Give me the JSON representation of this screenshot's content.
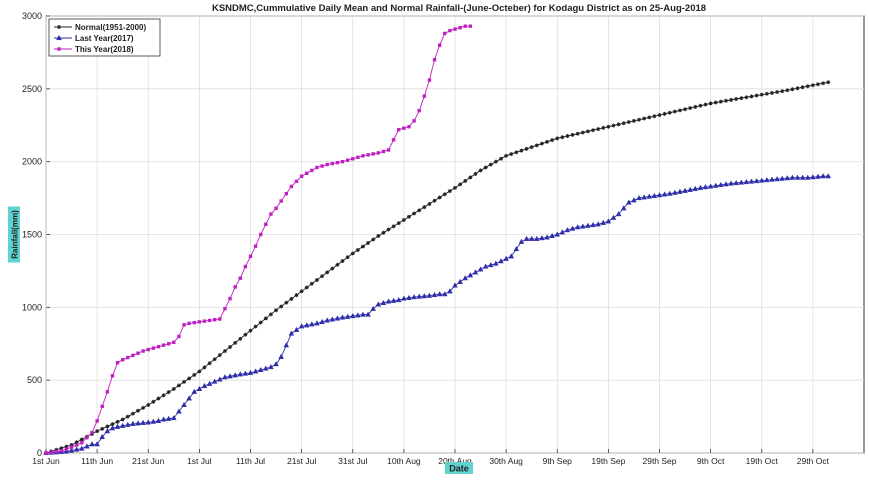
{
  "chart_data": {
    "type": "line",
    "title": "KSNDMC,Cummulative Daily Mean and Normal Rainfall-(June-Octeber) for Kodagu District as on 25-Aug-2018",
    "xlabel": "Date",
    "ylabel": "Rainfall(mm)",
    "x_unit": "day index from 1st Jun (0 = 1st Jun)",
    "xlim": [
      0,
      160
    ],
    "ylim": [
      0,
      3000
    ],
    "yticks": [
      0,
      500,
      1000,
      1500,
      2000,
      2500,
      3000
    ],
    "xtick_positions": [
      0,
      10,
      20,
      30,
      40,
      50,
      60,
      70,
      80,
      90,
      100,
      110,
      120,
      130,
      140,
      150
    ],
    "xtick_labels": [
      "1st Jun",
      "11th Jun",
      "21st Jun",
      "1st Jul",
      "11th Jul",
      "21st Jul",
      "31st Jul",
      "10th Aug",
      "20th Aug",
      "30th Aug",
      "9th Sep",
      "19th Sep",
      "29th Sep",
      "9th Oct",
      "19th Oct",
      "29th Oct"
    ],
    "grid": true,
    "legend_position": "top-left",
    "series": [
      {
        "name": "Normal(1951-2000)",
        "color": "#222222",
        "marker": "star",
        "x": [
          0,
          5,
          10,
          15,
          20,
          25,
          30,
          35,
          40,
          45,
          50,
          55,
          60,
          65,
          70,
          75,
          80,
          85,
          90,
          95,
          100,
          105,
          110,
          115,
          120,
          125,
          130,
          135,
          140,
          145,
          150,
          153
        ],
        "values": [
          0,
          55,
          150,
          230,
          330,
          440,
          560,
          700,
          840,
          980,
          1110,
          1240,
          1370,
          1490,
          1600,
          1710,
          1820,
          1940,
          2040,
          2100,
          2160,
          2200,
          2240,
          2280,
          2320,
          2360,
          2400,
          2430,
          2460,
          2490,
          2525,
          2545
        ]
      },
      {
        "name": "Last Year(2017)",
        "color": "#2e2eaa",
        "marker": "triangle",
        "x": [
          0,
          4,
          7,
          9,
          10,
          11,
          12,
          13,
          14,
          17,
          20,
          22,
          23,
          25,
          27,
          29,
          31,
          33,
          35,
          38,
          40,
          42,
          44,
          45,
          46,
          47,
          48,
          50,
          53,
          55,
          58,
          60,
          62,
          63,
          64,
          65,
          67,
          69,
          70,
          72,
          75,
          77,
          78,
          79,
          80,
          82,
          84,
          85,
          86,
          87,
          88,
          91,
          93,
          94,
          96,
          98,
          100,
          102,
          104,
          106,
          108,
          109,
          110,
          112,
          114,
          116,
          118,
          120,
          122,
          125,
          128,
          130,
          132,
          134,
          137,
          140,
          143,
          146,
          149,
          152,
          153
        ],
        "values": [
          0,
          10,
          30,
          60,
          60,
          110,
          150,
          170,
          180,
          200,
          210,
          220,
          230,
          240,
          330,
          420,
          460,
          490,
          520,
          540,
          550,
          570,
          590,
          610,
          660,
          740,
          820,
          870,
          890,
          910,
          930,
          940,
          950,
          950,
          990,
          1020,
          1040,
          1050,
          1060,
          1070,
          1080,
          1090,
          1090,
          1110,
          1150,
          1200,
          1240,
          1260,
          1280,
          1290,
          1300,
          1350,
          1450,
          1470,
          1470,
          1480,
          1500,
          1530,
          1550,
          1560,
          1570,
          1580,
          1590,
          1640,
          1720,
          1750,
          1760,
          1770,
          1780,
          1800,
          1820,
          1830,
          1840,
          1850,
          1860,
          1870,
          1880,
          1890,
          1890,
          1900,
          1900
        ]
      },
      {
        "name": "This Year(2018)",
        "color": "#c020c0",
        "marker": "square",
        "x": [
          0,
          3,
          5,
          7,
          9,
          10,
          11,
          12,
          13,
          14,
          15,
          17,
          19,
          21,
          23,
          25,
          26,
          27,
          28,
          30,
          32,
          34,
          35,
          36,
          37,
          38,
          39,
          40,
          41,
          42,
          43,
          44,
          45,
          46,
          47,
          48,
          50,
          53,
          55,
          58,
          60,
          62,
          65,
          67,
          68,
          69,
          70,
          71,
          72,
          73,
          74,
          75,
          76,
          77,
          78,
          79,
          80,
          81,
          82,
          83
        ],
        "values": [
          0,
          15,
          40,
          70,
          140,
          220,
          320,
          420,
          530,
          620,
          640,
          670,
          700,
          720,
          740,
          760,
          800,
          880,
          890,
          900,
          910,
          920,
          990,
          1060,
          1140,
          1200,
          1280,
          1350,
          1420,
          1500,
          1570,
          1640,
          1680,
          1730,
          1780,
          1830,
          1900,
          1960,
          1980,
          2000,
          2020,
          2040,
          2060,
          2080,
          2150,
          2220,
          2230,
          2240,
          2280,
          2350,
          2450,
          2560,
          2700,
          2800,
          2880,
          2900,
          2910,
          2920,
          2930,
          2930
        ]
      }
    ]
  }
}
